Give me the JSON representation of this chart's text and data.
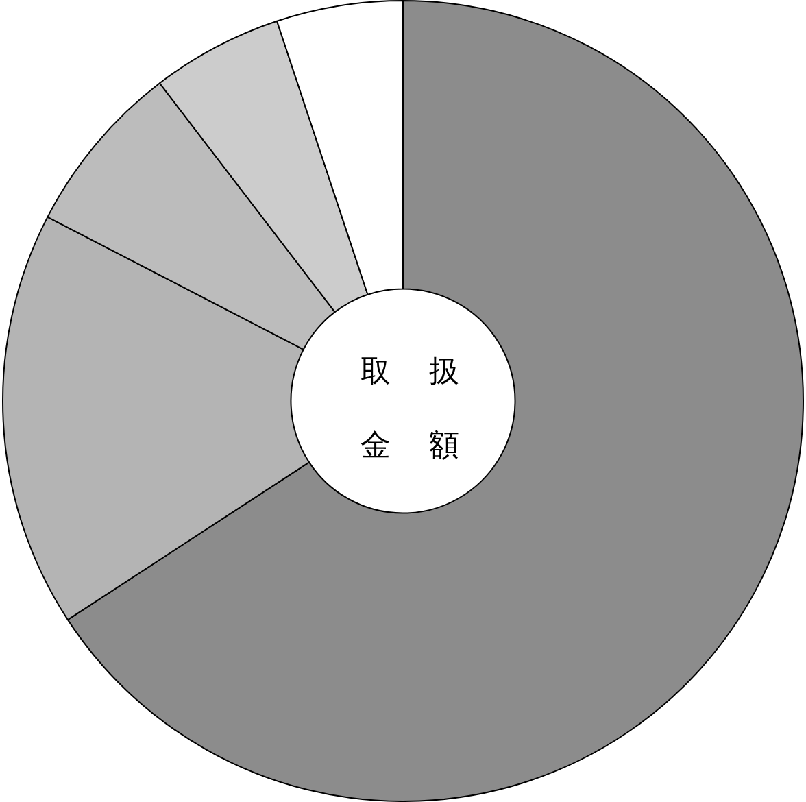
{
  "chart_data": {
    "type": "donut",
    "title": "取扱金額",
    "categories": [
      null,
      null,
      null,
      null,
      null
    ],
    "values": [
      65.8,
      16.8,
      7.0,
      5.3,
      5.1
    ],
    "colors": [
      "#8c8c8c",
      "#b4b4b4",
      "#bcbcbc",
      "#cccccc",
      "#ffffff"
    ],
    "legend": false
  }
}
